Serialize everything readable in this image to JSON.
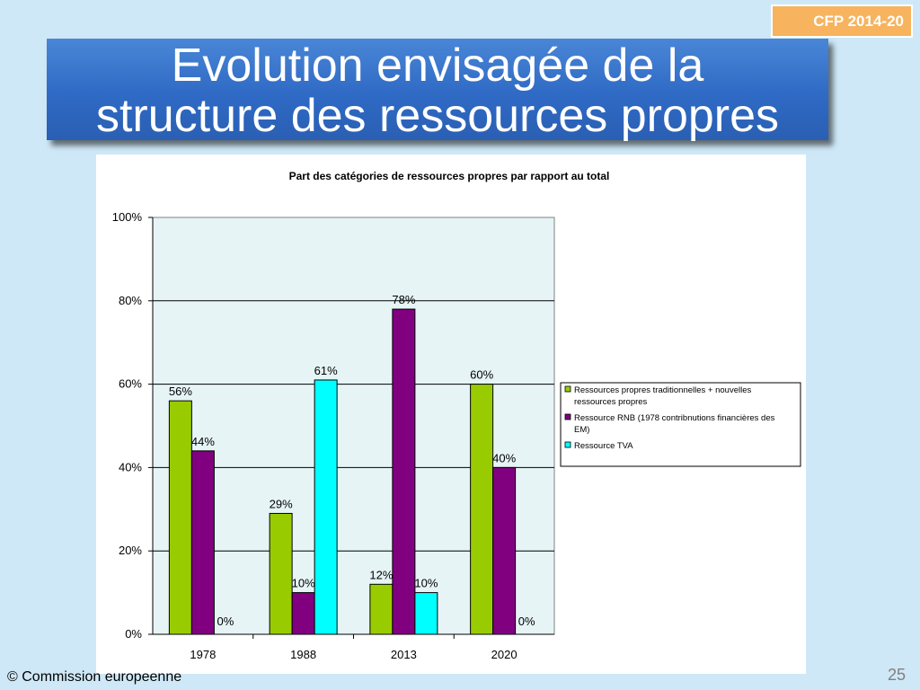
{
  "badge": "CFP 2014-20",
  "slide_title": {
    "line1": "Evolution envisagée de la",
    "line2": "structure des ressources propres"
  },
  "footer": "© Commission europeenne",
  "page_number": "25",
  "colors": {
    "series1": "#99cc00",
    "series2": "#800080",
    "series3": "#00ffff",
    "plot_bg": "#e6f4f6",
    "title_box": "#3b76cf",
    "badge": "#f7b35d"
  },
  "chart_data": {
    "type": "bar",
    "title": "Part des catégories de ressources propres par rapport au total",
    "categories": [
      "1978",
      "1988",
      "2013",
      "2020"
    ],
    "series": [
      {
        "name": "Ressources propres traditionnelles + nouvelles ressources propres",
        "values": [
          56,
          29,
          12,
          60
        ],
        "labels": [
          "56%",
          "29%",
          "12%",
          "60%"
        ]
      },
      {
        "name": "Ressource RNB (1978 contribnutions financières des EM)",
        "values": [
          44,
          10,
          78,
          40
        ],
        "labels": [
          "44%",
          "10%",
          "78%",
          "40%"
        ]
      },
      {
        "name": "Ressource TVA",
        "values": [
          0,
          61,
          10,
          0
        ],
        "labels": [
          "0%",
          "61%",
          "10%",
          "0%"
        ]
      }
    ],
    "ylim": [
      0,
      100
    ],
    "yticks": [
      "0%",
      "20%",
      "40%",
      "60%",
      "80%",
      "100%"
    ],
    "grid": true,
    "legend_position": "right"
  }
}
